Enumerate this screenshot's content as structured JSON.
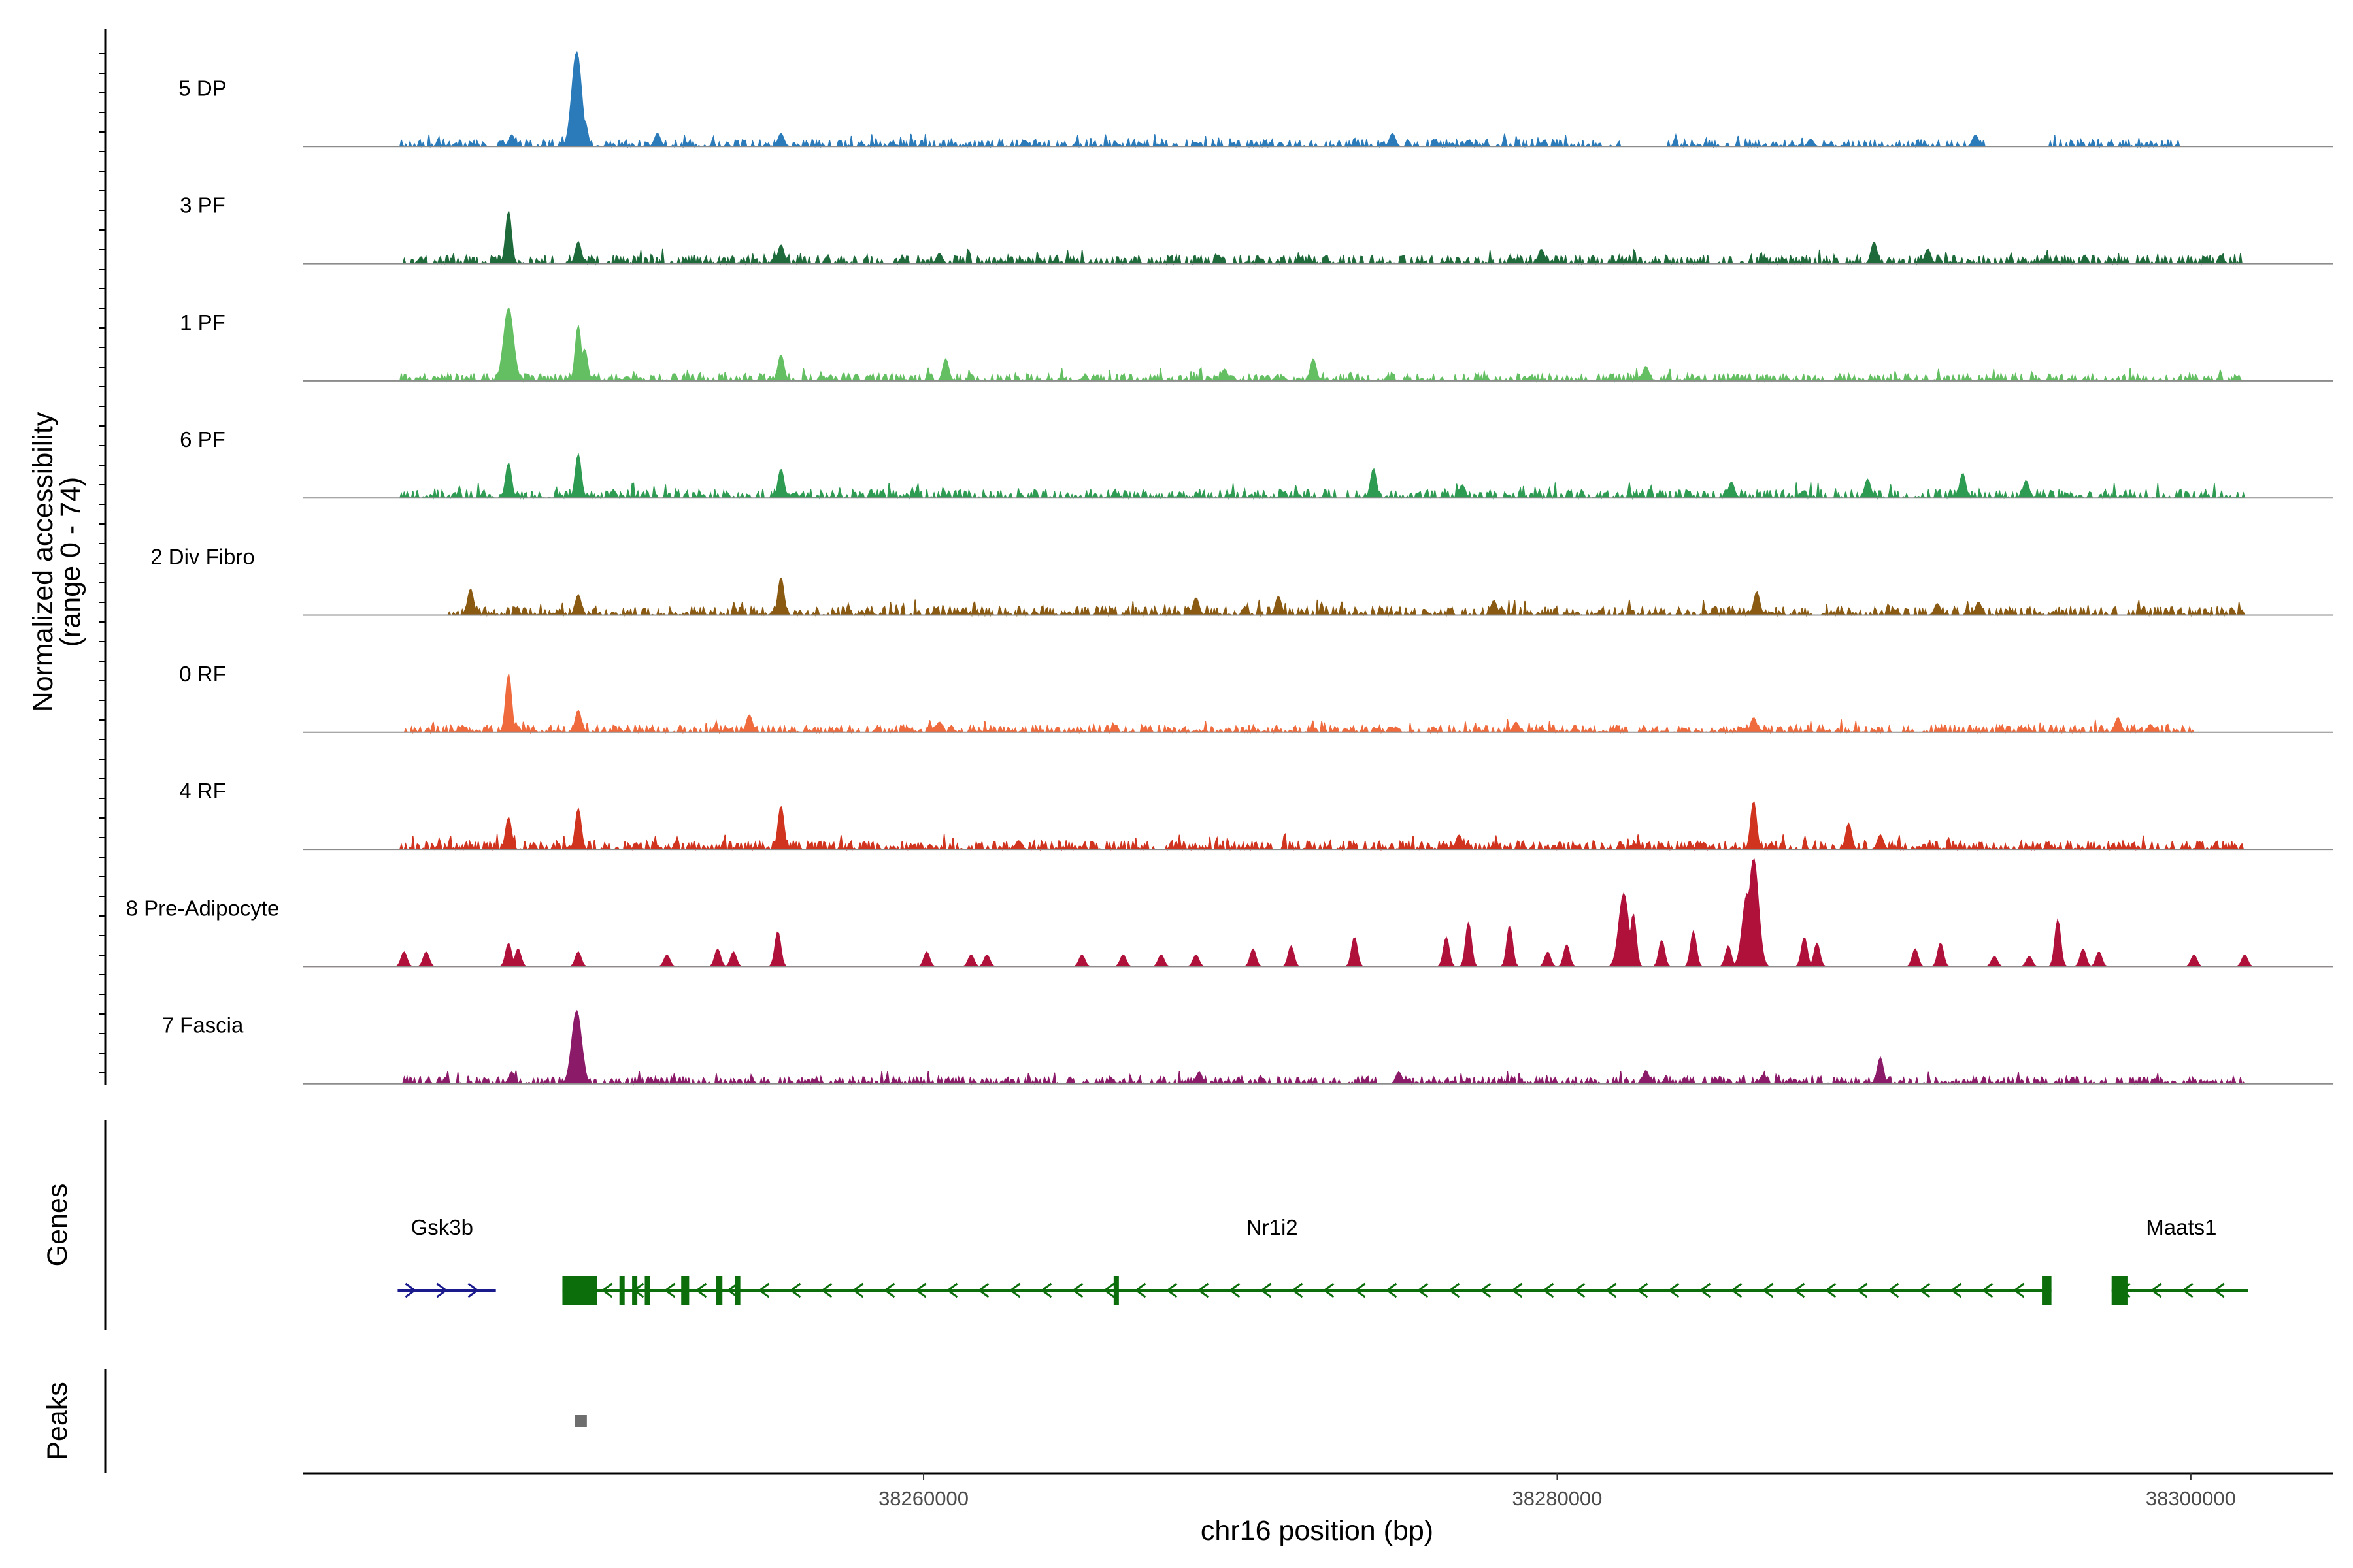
{
  "chart_data": {
    "type": "area",
    "title": "",
    "ylabel_line1": "Normalized accessibility",
    "ylabel_line2": "(range 0 - 74)",
    "y_range": [
      0,
      74
    ],
    "xlabel": "chr16 position (bp)",
    "xlim": [
      38240400,
      38304500
    ],
    "x_ticks": [
      38260000,
      38280000,
      38300000
    ],
    "x_tick_labels": [
      "38260000",
      "38280000",
      "38300000"
    ],
    "tracks": [
      {
        "name": "5 DP",
        "color": "#2b7bba",
        "peaks": [
          [
            38249050,
            65
          ],
          [
            38248900,
            24
          ],
          [
            38249300,
            18
          ],
          [
            38247000,
            8
          ],
          [
            38251600,
            9
          ],
          [
            38255500,
            9
          ],
          [
            38274800,
            9
          ],
          [
            38293200,
            8
          ],
          [
            38263200,
            4
          ],
          [
            38288000,
            5
          ]
        ],
        "noise": 5,
        "coverage": [
          [
            38243500,
            38282000
          ],
          [
            38283500,
            38293500
          ],
          [
            38295500,
            38299800
          ]
        ]
      },
      {
        "name": "3 PF",
        "color": "#1f6a3a",
        "peaks": [
          [
            38246900,
            36
          ],
          [
            38249100,
            15
          ],
          [
            38255500,
            13
          ],
          [
            38290000,
            15
          ],
          [
            38291700,
            10
          ],
          [
            38279500,
            10
          ],
          [
            38260500,
            7
          ]
        ],
        "noise": 6,
        "coverage": [
          [
            38243500,
            38301700
          ]
        ]
      },
      {
        "name": "1 PF",
        "color": "#63bf62",
        "peaks": [
          [
            38246900,
            50
          ],
          [
            38249100,
            38
          ],
          [
            38249300,
            22
          ],
          [
            38255500,
            18
          ],
          [
            38260700,
            15
          ],
          [
            38272300,
            15
          ],
          [
            38282800,
            10
          ],
          [
            38269500,
            8
          ]
        ],
        "noise": 5,
        "coverage": [
          [
            38243500,
            38301700
          ]
        ]
      },
      {
        "name": "6 PF",
        "color": "#2e9b52",
        "peaks": [
          [
            38246900,
            24
          ],
          [
            38249100,
            30
          ],
          [
            38255500,
            20
          ],
          [
            38274200,
            20
          ],
          [
            38285500,
            11
          ],
          [
            38289800,
            13
          ],
          [
            38292800,
            17
          ],
          [
            38294800,
            12
          ],
          [
            38277000,
            9
          ]
        ],
        "noise": 6,
        "coverage": [
          [
            38243500,
            38301700
          ]
        ]
      },
      {
        "name": "2 Div Fibro",
        "color": "#8a5a12",
        "peaks": [
          [
            38245700,
            18
          ],
          [
            38249100,
            14
          ],
          [
            38255500,
            26
          ],
          [
            38271200,
            13
          ],
          [
            38268600,
            12
          ],
          [
            38286300,
            16
          ],
          [
            38278000,
            10
          ],
          [
            38292000,
            8
          ],
          [
            38293300,
            9
          ]
        ],
        "noise": 6,
        "coverage": [
          [
            38245000,
            38301700
          ]
        ]
      },
      {
        "name": "0 RF",
        "color": "#ef6a3d",
        "peaks": [
          [
            38246900,
            40
          ],
          [
            38249100,
            15
          ],
          [
            38254500,
            12
          ],
          [
            38286200,
            10
          ],
          [
            38297700,
            10
          ],
          [
            38260500,
            7
          ],
          [
            38278700,
            7
          ]
        ],
        "noise": 5,
        "coverage": [
          [
            38243500,
            38300100
          ]
        ]
      },
      {
        "name": "4 RF",
        "color": "#d0341f",
        "peaks": [
          [
            38246900,
            22
          ],
          [
            38249100,
            28
          ],
          [
            38255500,
            30
          ],
          [
            38286200,
            33
          ],
          [
            38289200,
            18
          ],
          [
            38290200,
            10
          ],
          [
            38276900,
            10
          ],
          [
            38263000,
            6
          ]
        ],
        "noise": 6,
        "coverage": [
          [
            38243500,
            38301700
          ]
        ]
      },
      {
        "name": "8 Pre-Adipocyte",
        "color": "#b0113b",
        "peaks": [
          [
            38286200,
            74
          ],
          [
            38286000,
            50
          ],
          [
            38282100,
            50
          ],
          [
            38282400,
            36
          ],
          [
            38277200,
            30
          ],
          [
            38278500,
            28
          ],
          [
            38284300,
            24
          ],
          [
            38295800,
            32
          ],
          [
            38255400,
            24
          ],
          [
            38273600,
            20
          ],
          [
            38276500,
            20
          ],
          [
            38280300,
            15
          ],
          [
            38271600,
            14
          ],
          [
            38270400,
            12
          ],
          [
            38283300,
            18
          ],
          [
            38287800,
            20
          ],
          [
            38288200,
            16
          ],
          [
            38291300,
            12
          ],
          [
            38292100,
            16
          ],
          [
            38285400,
            14
          ],
          [
            38296600,
            12
          ],
          [
            38297100,
            10
          ],
          [
            38265000,
            8
          ],
          [
            38246900,
            16
          ],
          [
            38247200,
            12
          ],
          [
            38249100,
            10
          ],
          [
            38243600,
            10
          ],
          [
            38244300,
            10
          ],
          [
            38253500,
            12
          ],
          [
            38251900,
            8
          ],
          [
            38254000,
            10
          ],
          [
            38260100,
            10
          ],
          [
            38261500,
            8
          ],
          [
            38262000,
            8
          ],
          [
            38266300,
            8
          ],
          [
            38267500,
            8
          ],
          [
            38268600,
            8
          ],
          [
            38279700,
            10
          ],
          [
            38300100,
            8
          ],
          [
            38301700,
            8
          ],
          [
            38293800,
            7
          ],
          [
            38294900,
            7
          ]
        ],
        "noise": 0,
        "coverage": []
      },
      {
        "name": "7 Fascia",
        "color": "#8b1a68",
        "peaks": [
          [
            38249050,
            50
          ],
          [
            38249200,
            25
          ],
          [
            38247000,
            8
          ],
          [
            38290200,
            18
          ],
          [
            38268700,
            8
          ],
          [
            38275000,
            8
          ],
          [
            38282800,
            9
          ],
          [
            38286500,
            6
          ]
        ],
        "noise": 5,
        "coverage": [
          [
            38243500,
            38301700
          ]
        ]
      }
    ],
    "genes": [
      {
        "name": "Gsk3b",
        "strand": "+",
        "color": "#1a1a8c",
        "start": 38243400,
        "end": 38246500,
        "exons": []
      },
      {
        "name": "Nr1i2",
        "strand": "-",
        "color": "#0b6e0b",
        "start": 38248600,
        "end": 38295600,
        "exons": [
          [
            38248600,
            38249700
          ],
          [
            38250400,
            38250500
          ],
          [
            38250800,
            38250950
          ],
          [
            38251200,
            38251350
          ],
          [
            38252350,
            38252600
          ],
          [
            38253450,
            38253650
          ],
          [
            38254050,
            38254200
          ],
          [
            38266000,
            38266150
          ],
          [
            38295300,
            38295600
          ]
        ]
      },
      {
        "name": "Maats1",
        "strand": "-",
        "color": "#0b6e0b",
        "start": 38297500,
        "end": 38301800,
        "exons": [
          [
            38297500,
            38298000
          ]
        ]
      }
    ],
    "peaks_track": [
      [
        38249000,
        38249300
      ]
    ],
    "panel_labels": {
      "genes": "Genes",
      "peaks": "Peaks"
    }
  }
}
